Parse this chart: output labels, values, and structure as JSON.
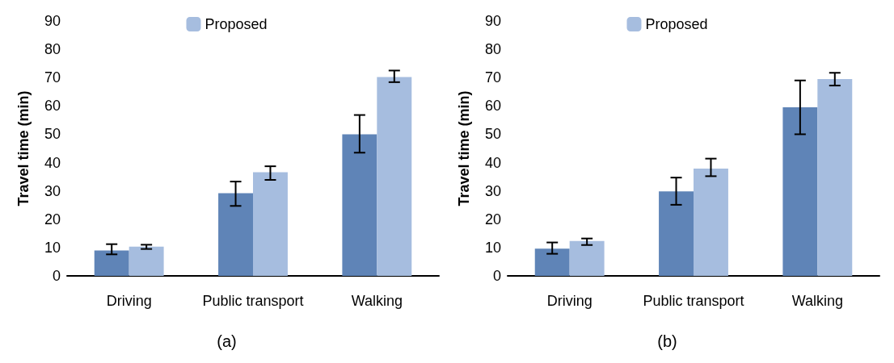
{
  "chart_data": [
    {
      "type": "bar",
      "title": "(a)",
      "ylabel": "Travel time (min)",
      "categories": [
        "Driving",
        "Public transport",
        "Walking"
      ],
      "series": [
        {
          "color": "#5f84b7",
          "values": [
            9.0,
            29.2,
            50.0
          ],
          "errors": [
            [
              7.6,
              11.2
            ],
            [
              24.7,
              33.3
            ],
            [
              43.5,
              56.8
            ]
          ]
        },
        {
          "name": "Proposed",
          "color": "#a6bddf",
          "values": [
            10.3,
            36.6,
            70.2
          ],
          "errors": [
            [
              9.5,
              11.0
            ],
            [
              33.9,
              38.7
            ],
            [
              68.4,
              72.5
            ]
          ]
        }
      ],
      "ylim": [
        0,
        90
      ],
      "yticks": [
        0,
        10,
        20,
        30,
        40,
        50,
        60,
        70,
        80,
        90
      ],
      "grid": false,
      "legend": "top"
    },
    {
      "type": "bar",
      "title": "(b)",
      "ylabel": "Travel time (min)",
      "categories": [
        "Driving",
        "Public transport",
        "Walking"
      ],
      "series": [
        {
          "color": "#5f84b7",
          "values": [
            9.6,
            29.8,
            59.5
          ],
          "errors": [
            [
              7.8,
              11.8
            ],
            [
              25.1,
              34.7
            ],
            [
              50.0,
              69.0
            ]
          ]
        },
        {
          "name": "Proposed",
          "color": "#a6bddf",
          "values": [
            12.3,
            37.9,
            69.5
          ],
          "errors": [
            [
              10.9,
              13.2
            ],
            [
              35.2,
              41.4
            ],
            [
              67.2,
              71.7
            ]
          ]
        }
      ],
      "ylim": [
        0,
        90
      ],
      "yticks": [
        0,
        10,
        20,
        30,
        40,
        50,
        60,
        70,
        80,
        90
      ],
      "grid": false,
      "legend": "top"
    }
  ]
}
